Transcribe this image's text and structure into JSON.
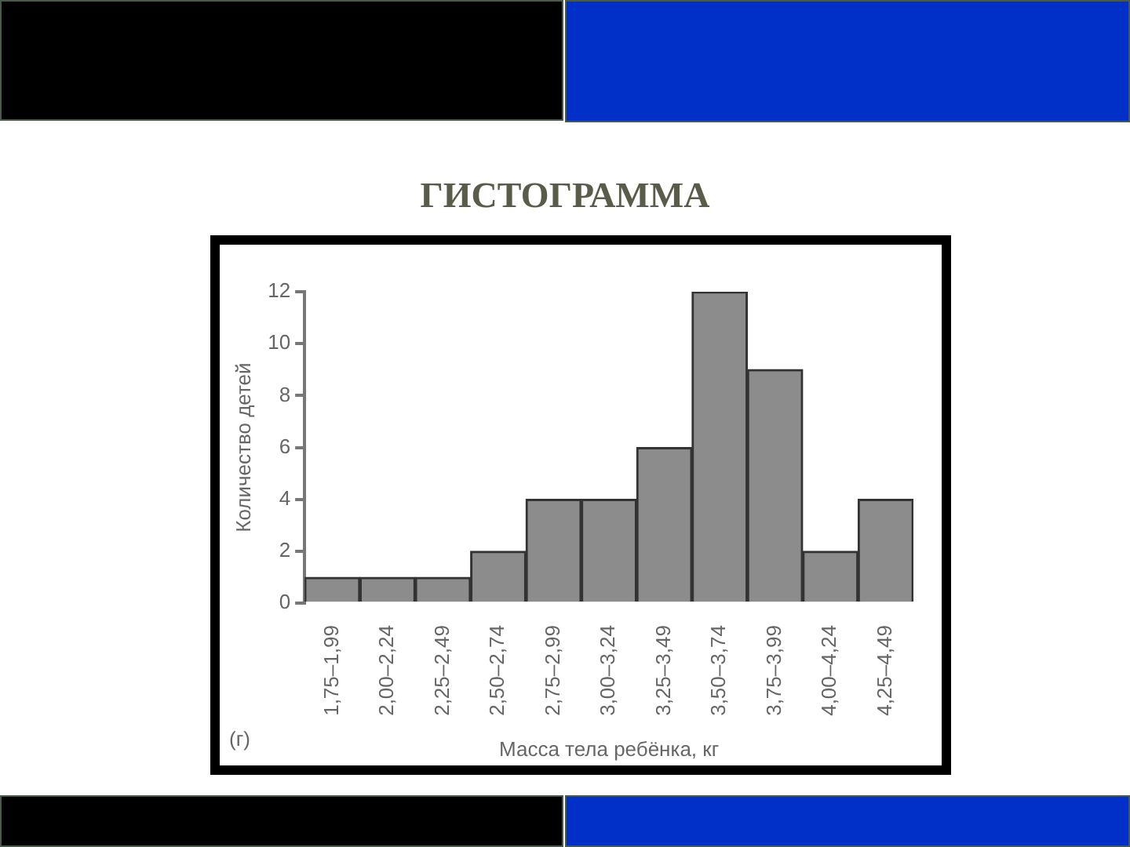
{
  "chart_data": {
    "type": "bar",
    "title": "ГИСТОГРАММА",
    "xlabel": "Масса тела ребёнка, кг",
    "ylabel": "Количество детей",
    "annotations": [
      "(г)"
    ],
    "categories": [
      "1,75–1,99",
      "2,00–2,24",
      "2,25–2,49",
      "2,50–2,74",
      "2,75–2,99",
      "3,00–3,24",
      "3,25–3,49",
      "3,50–3,74",
      "3,75–3,99",
      "4,00–4,24",
      "4,25–4,49"
    ],
    "values": [
      1,
      1,
      1,
      2,
      4,
      4,
      6,
      12,
      9,
      2,
      4
    ],
    "color": "#8c8c8c",
    "ylim": [
      0,
      12
    ],
    "yticks": [
      0,
      2,
      4,
      6,
      8,
      10,
      12
    ],
    "grid": false,
    "legend": false
  }
}
